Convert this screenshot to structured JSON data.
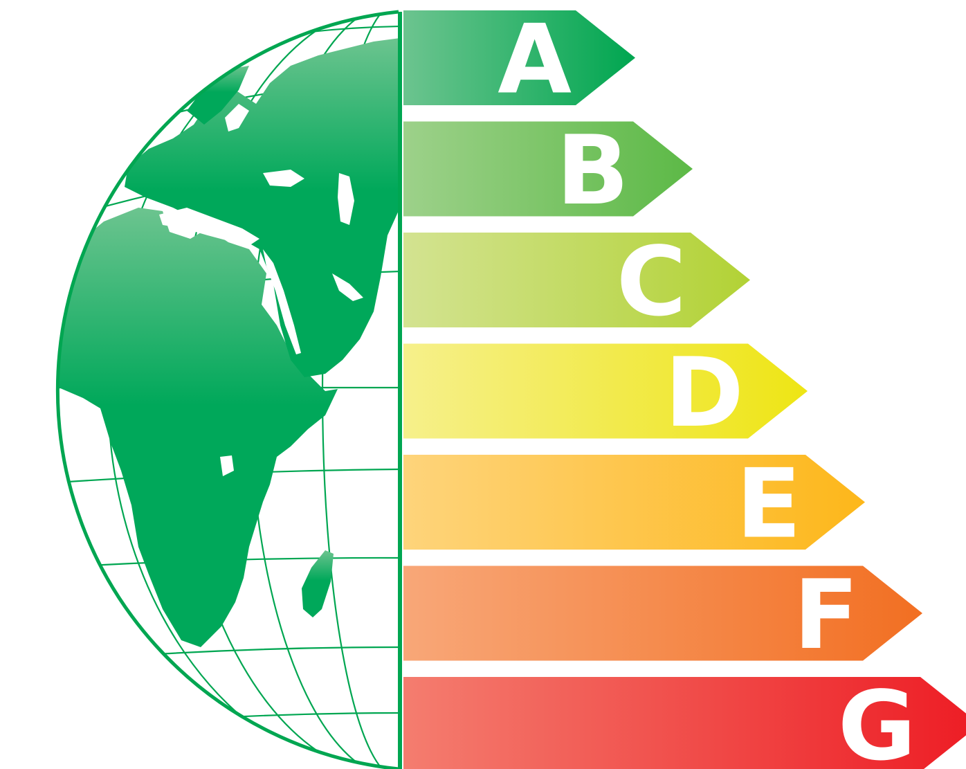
{
  "rating": {
    "classes": [
      {
        "letter": "A",
        "color_start": "#6cc48f",
        "color_end": "#00a650"
      },
      {
        "letter": "B",
        "color_start": "#9dd18a",
        "color_end": "#5cb946"
      },
      {
        "letter": "C",
        "color_start": "#d3e391",
        "color_end": "#b2d235"
      },
      {
        "letter": "D",
        "color_start": "#f6f08b",
        "color_end": "#eee514"
      },
      {
        "letter": "E",
        "color_start": "#fed47b",
        "color_end": "#fdb71a"
      },
      {
        "letter": "F",
        "color_start": "#f8a778",
        "color_end": "#f26f22"
      },
      {
        "letter": "G",
        "color_start": "#f47d6f",
        "color_end": "#ed1c24"
      }
    ]
  },
  "globe": {
    "ocean_color": "#ffffff",
    "land_color": "#00a85a",
    "land_highlight": "#6cc48f",
    "grid_color": "#00a651"
  }
}
